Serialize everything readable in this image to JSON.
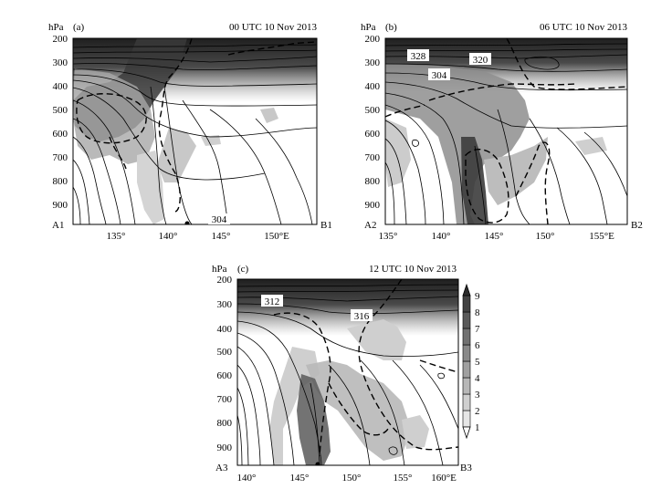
{
  "colors": {
    "shade_levels": [
      "#ffffff",
      "#e6e6e6",
      "#cfcfcf",
      "#b7b7b7",
      "#a0a0a0",
      "#898989",
      "#717171",
      "#5a5a5a",
      "#424242",
      "#2b2b2b"
    ],
    "contour": "#000000",
    "background": "#ffffff"
  },
  "panels": [
    {
      "unit_label": "hPa",
      "tag": "(a)",
      "time": "00 UTC 10 Nov 2013",
      "left_end": "A1",
      "right_end": "B1",
      "y_ticks": [
        "200",
        "300",
        "400",
        "500",
        "600",
        "700",
        "800",
        "900"
      ],
      "x_ticks": [
        "135°",
        "140°",
        "145°",
        "150°E"
      ],
      "contour_labels": [
        "304"
      ]
    },
    {
      "unit_label": "hPa",
      "tag": "(b)",
      "time": "06 UTC 10 Nov 2013",
      "left_end": "A2",
      "right_end": "B2",
      "y_ticks": [
        "200",
        "300",
        "400",
        "500",
        "600",
        "700",
        "800",
        "900"
      ],
      "x_ticks": [
        "135°",
        "140°",
        "145°",
        "150°",
        "155°E"
      ],
      "contour_labels": [
        "328",
        "320",
        "304"
      ]
    },
    {
      "unit_label": "hPa",
      "tag": "(c)",
      "time": "12 UTC 10 Nov 2013",
      "left_end": "A3",
      "right_end": "B3",
      "y_ticks": [
        "200",
        "300",
        "400",
        "500",
        "600",
        "700",
        "800",
        "900"
      ],
      "x_ticks": [
        "140°",
        "145°",
        "150°",
        "155°",
        "160°E"
      ],
      "contour_labels": [
        "312",
        "316"
      ]
    }
  ],
  "colorbar": {
    "ticks": [
      "1",
      "2",
      "3",
      "4",
      "5",
      "6",
      "7",
      "8",
      "9"
    ]
  }
}
